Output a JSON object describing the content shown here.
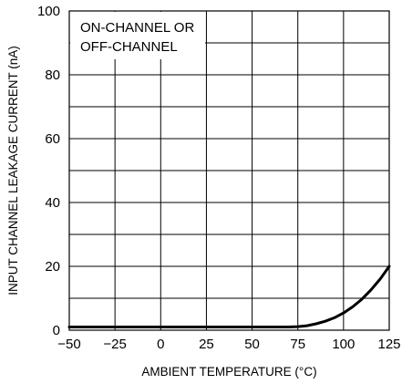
{
  "chart_data": {
    "type": "line",
    "title": "",
    "xlabel": "AMBIENT TEMPERATURE (°C)",
    "ylabel": "INPUT CHANNEL LEAKAGE CURRENT (nA)",
    "xlim": [
      -50,
      125
    ],
    "ylim": [
      0,
      100
    ],
    "grid": true,
    "x_ticks": [
      "−50",
      "−25",
      "0",
      "25",
      "50",
      "75",
      "100",
      "125"
    ],
    "y_ticks": [
      "0",
      "20",
      "40",
      "60",
      "80",
      "100"
    ],
    "annotation": [
      "ON-CHANNEL OR",
      "OFF-CHANNEL"
    ],
    "series": [
      {
        "x": [
          -50,
          -25,
          0,
          25,
          50,
          70,
          75,
          80,
          85,
          90,
          95,
          100,
          105,
          110,
          115,
          120,
          125
        ],
        "y": [
          1,
          1,
          1,
          1,
          1,
          1,
          1.1,
          1.4,
          2,
          2.8,
          3.9,
          5.4,
          7.3,
          9.7,
          12.6,
          16,
          20
        ]
      }
    ]
  }
}
